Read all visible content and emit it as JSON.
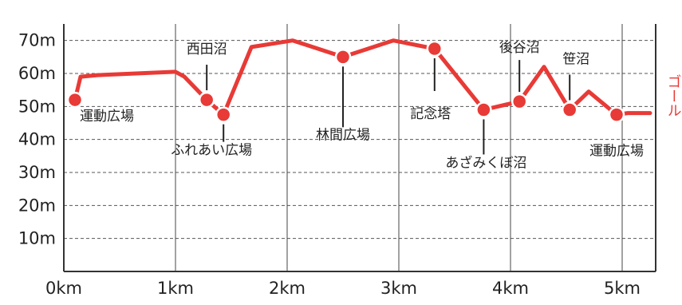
{
  "chart_data": {
    "type": "line",
    "xlabel": "",
    "ylabel": "",
    "xlim": [
      0,
      5.3
    ],
    "ylim": [
      0,
      75
    ],
    "grid": true,
    "x_ticks": [
      {
        "value": 0,
        "label": "0km"
      },
      {
        "value": 1,
        "label": "1km"
      },
      {
        "value": 2,
        "label": "2km"
      },
      {
        "value": 3,
        "label": "3km"
      },
      {
        "value": 4,
        "label": "4km"
      },
      {
        "value": 5,
        "label": "5km"
      }
    ],
    "y_ticks": [
      {
        "value": 10,
        "label": "10m"
      },
      {
        "value": 20,
        "label": "20m"
      },
      {
        "value": 30,
        "label": "30m"
      },
      {
        "value": 40,
        "label": "40m"
      },
      {
        "value": 50,
        "label": "50m"
      },
      {
        "value": 60,
        "label": "60m"
      },
      {
        "value": 70,
        "label": "70m"
      }
    ],
    "series": [
      {
        "x": [
          0.1,
          0.15,
          0.3,
          1.0,
          1.08,
          1.28,
          1.43,
          1.68,
          2.05,
          2.5,
          2.95,
          3.32,
          3.76,
          4.08,
          4.3,
          4.53,
          4.7,
          4.95,
          5.05,
          5.25
        ],
        "y": [
          52,
          59,
          59.5,
          60.5,
          59,
          52,
          47.5,
          68,
          70,
          65,
          70,
          67.5,
          49,
          51.5,
          62,
          49,
          54.5,
          47.5,
          48,
          48
        ]
      }
    ],
    "points": [
      {
        "label": "運動広場",
        "x": 0.1,
        "y": 52
      },
      {
        "label": "西田沼",
        "x": 1.28,
        "y": 52
      },
      {
        "label": "ふれあい広場",
        "x": 1.43,
        "y": 47.5
      },
      {
        "label": "林間広場",
        "x": 2.5,
        "y": 65
      },
      {
        "label": "記念塔",
        "x": 3.32,
        "y": 67.5
      },
      {
        "label": "あざみくぼ沼",
        "x": 3.76,
        "y": 49
      },
      {
        "label": "後谷沼",
        "x": 4.08,
        "y": 51.5
      },
      {
        "label": "笹沼",
        "x": 4.53,
        "y": 49
      },
      {
        "label": "運動広場",
        "x": 4.95,
        "y": 47.5
      }
    ],
    "end_label": "ゴール"
  },
  "colors": {
    "line": "#e83a36",
    "marker_fill": "#e83a36",
    "marker_stroke": "#ffffff",
    "axis": "#333333",
    "grid": "#555555",
    "goal_text": "#e83a36"
  }
}
